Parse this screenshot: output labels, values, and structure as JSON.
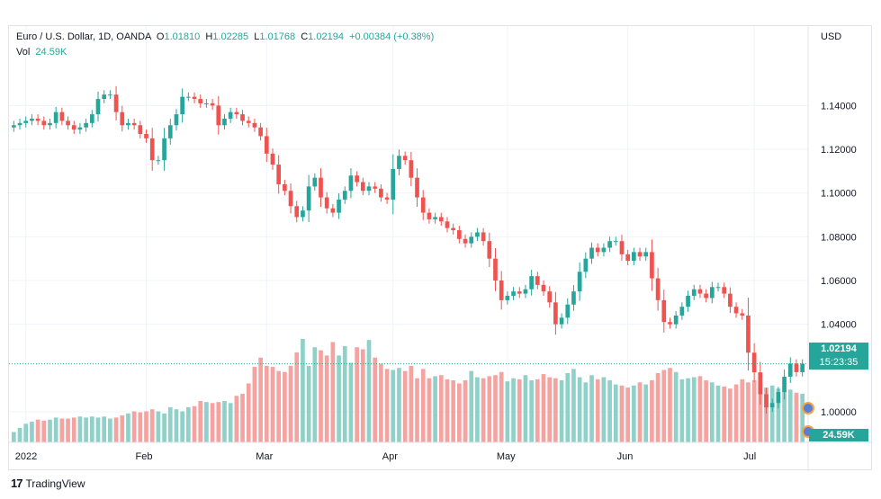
{
  "legend": {
    "symbol": "Euro / U.S. Dollar, 1D, OANDA",
    "open_key": "O",
    "open": "1.01810",
    "high_key": "H",
    "high": "1.02285",
    "low_key": "L",
    "low": "1.01768",
    "close_key": "C",
    "close": "1.02194",
    "change": "+0.00384 (+0.38%)",
    "vol_key": "Vol",
    "vol": "24.59K"
  },
  "currency": "USD",
  "last_price": "1.02194",
  "countdown": "15:23:35",
  "vol_badge": "24.59K",
  "branding": {
    "logo": "17",
    "name": "TradingView"
  },
  "colors": {
    "up": "#26a69a",
    "down": "#ef5350",
    "up_vol": "#8fd1c8",
    "down_vol": "#f5a3a1",
    "grid": "#f0f3fa"
  },
  "chart_data": {
    "type": "candlestick",
    "y_ticks": [
      "1.14000",
      "1.12000",
      "1.10000",
      "1.08000",
      "1.06000",
      "1.04000",
      "1.00000"
    ],
    "ylim": [
      0.986,
      1.164
    ],
    "x_ticks": [
      {
        "label": "2022",
        "index": 2
      },
      {
        "label": "Feb",
        "index": 22
      },
      {
        "label": "Mar",
        "index": 42
      },
      {
        "label": "Apr",
        "index": 63
      },
      {
        "label": "May",
        "index": 82
      },
      {
        "label": "Jun",
        "index": 102
      },
      {
        "label": "Jul",
        "index": 123
      }
    ],
    "last_price": 1.02194,
    "close": [
      1.131,
      1.132,
      1.133,
      1.134,
      1.133,
      1.131,
      1.132,
      1.137,
      1.133,
      1.131,
      1.129,
      1.13,
      1.132,
      1.136,
      1.143,
      1.145,
      1.145,
      1.137,
      1.131,
      1.132,
      1.131,
      1.127,
      1.125,
      1.115,
      1.115,
      1.125,
      1.131,
      1.136,
      1.144,
      1.144,
      1.143,
      1.141,
      1.141,
      1.14,
      1.131,
      1.134,
      1.137,
      1.136,
      1.133,
      1.132,
      1.13,
      1.126,
      1.118,
      1.113,
      1.104,
      1.101,
      1.094,
      1.089,
      1.092,
      1.103,
      1.107,
      1.098,
      1.093,
      1.091,
      1.097,
      1.101,
      1.108,
      1.105,
      1.101,
      1.103,
      1.102,
      1.098,
      1.097,
      1.111,
      1.117,
      1.115,
      1.107,
      1.098,
      1.091,
      1.088,
      1.089,
      1.087,
      1.084,
      1.083,
      1.079,
      1.077,
      1.08,
      1.082,
      1.078,
      1.07,
      1.06,
      1.051,
      1.053,
      1.055,
      1.054,
      1.056,
      1.062,
      1.058,
      1.055,
      1.05,
      1.04,
      1.043,
      1.049,
      1.055,
      1.064,
      1.07,
      1.075,
      1.073,
      1.075,
      1.078,
      1.078,
      1.072,
      1.069,
      1.073,
      1.071,
      1.073,
      1.061,
      1.051,
      1.041,
      1.04,
      1.044,
      1.048,
      1.053,
      1.056,
      1.054,
      1.052,
      1.057,
      1.057,
      1.054,
      1.048,
      1.045,
      1.044,
      1.027,
      1.018,
      1.008,
      1.002,
      1.004,
      1.009,
      1.016,
      1.022,
      1.0181,
      1.02194
    ],
    "volume_relative": [
      0.1,
      0.14,
      0.18,
      0.2,
      0.22,
      0.21,
      0.22,
      0.24,
      0.23,
      0.23,
      0.24,
      0.25,
      0.24,
      0.25,
      0.24,
      0.25,
      0.23,
      0.24,
      0.26,
      0.28,
      0.3,
      0.29,
      0.3,
      0.32,
      0.3,
      0.28,
      0.34,
      0.32,
      0.3,
      0.34,
      0.35,
      0.4,
      0.39,
      0.38,
      0.39,
      0.4,
      0.38,
      0.45,
      0.47,
      0.57,
      0.73,
      0.82,
      0.74,
      0.73,
      0.69,
      0.68,
      0.74,
      0.87,
      1.0,
      0.74,
      0.92,
      0.89,
      0.84,
      0.97,
      0.84,
      0.93,
      0.77,
      0.92,
      0.9,
      0.99,
      0.82,
      0.76,
      0.71,
      0.7,
      0.72,
      0.69,
      0.74,
      0.62,
      0.71,
      0.62,
      0.64,
      0.65,
      0.61,
      0.6,
      0.57,
      0.6,
      0.69,
      0.63,
      0.62,
      0.64,
      0.65,
      0.68,
      0.59,
      0.62,
      0.61,
      0.65,
      0.6,
      0.61,
      0.66,
      0.63,
      0.62,
      0.6,
      0.67,
      0.71,
      0.63,
      0.58,
      0.65,
      0.61,
      0.63,
      0.6,
      0.56,
      0.55,
      0.53,
      0.55,
      0.58,
      0.56,
      0.6,
      0.67,
      0.7,
      0.72,
      0.68,
      0.61,
      0.62,
      0.63,
      0.64,
      0.6,
      0.58,
      0.55,
      0.54,
      0.52,
      0.56,
      0.61,
      0.58,
      0.6,
      0.57,
      0.53,
      0.55,
      0.52,
      0.5,
      0.51,
      0.48,
      0.47
    ]
  }
}
